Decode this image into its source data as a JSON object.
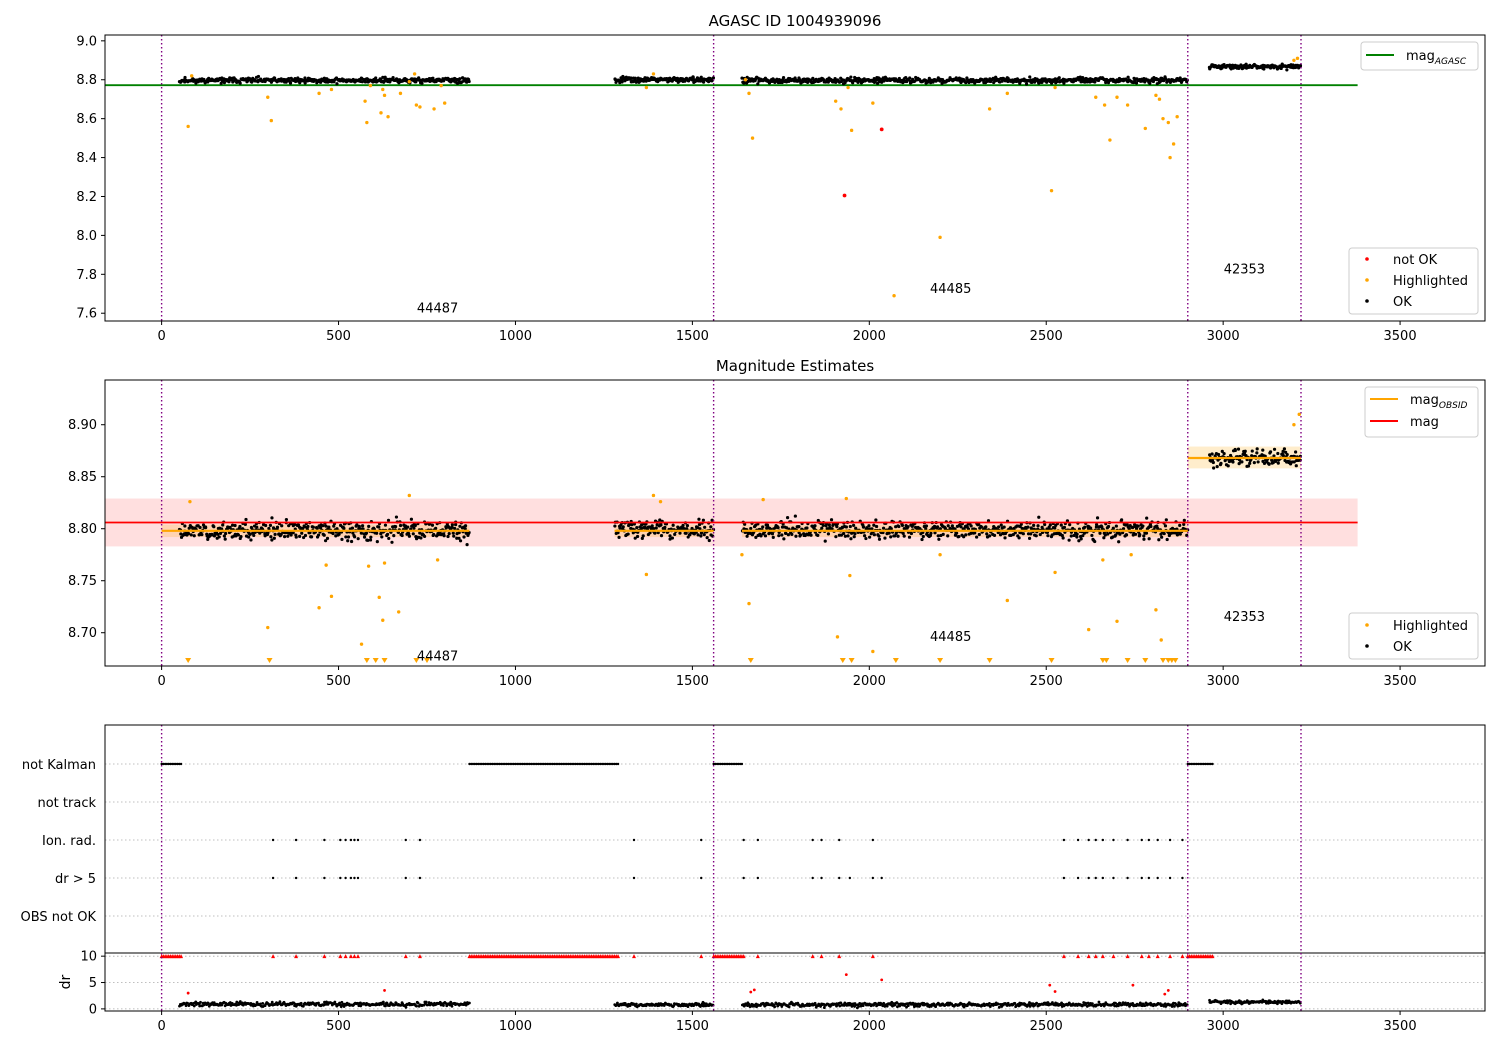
{
  "chart_data": [
    {
      "type": "scatter",
      "title": "AGASC ID 1004939096",
      "xlim": [
        -160,
        3740
      ],
      "ylim": [
        7.56,
        9.03
      ],
      "x_ticks": [
        0,
        500,
        1000,
        1500,
        2000,
        2500,
        3000,
        3500
      ],
      "y_ticks": [
        {
          "v": 9.0,
          "label": "9.0"
        },
        {
          "v": 8.8,
          "label": "8.8"
        },
        {
          "v": 8.6,
          "label": "8.6"
        },
        {
          "v": 8.4,
          "label": "8.4"
        },
        {
          "v": 8.2,
          "label": "8.2"
        },
        {
          "v": 8.0,
          "label": "8.0"
        },
        {
          "v": 7.8,
          "label": "7.8"
        },
        {
          "v": 7.6,
          "label": "7.6"
        }
      ],
      "obs_boundaries": [
        0,
        1560,
        2900,
        3220
      ],
      "reference_line": {
        "label": "mag",
        "sub": "AGASC",
        "value": 8.772,
        "x_range": [
          -160,
          3380
        ],
        "color": "#008000"
      },
      "annotations": [
        {
          "text": "44487",
          "x": 780,
          "y": 7.63
        },
        {
          "text": "44485",
          "x": 2230,
          "y": 7.73
        },
        {
          "text": "42353",
          "x": 3060,
          "y": 7.83
        }
      ],
      "series": [
        {
          "name": "not OK",
          "color": "#ff0000",
          "points": [
            [
              1930,
              8.205
            ],
            [
              2035,
              8.545
            ]
          ]
        },
        {
          "name": "Highlighted",
          "color": "#ffa500",
          "points": [
            [
              75,
              8.56
            ],
            [
              85,
              8.82
            ],
            [
              300,
              8.71
            ],
            [
              310,
              8.59
            ],
            [
              445,
              8.73
            ],
            [
              480,
              8.75
            ],
            [
              575,
              8.69
            ],
            [
              580,
              8.58
            ],
            [
              590,
              8.77
            ],
            [
              620,
              8.63
            ],
            [
              625,
              8.75
            ],
            [
              630,
              8.72
            ],
            [
              640,
              8.61
            ],
            [
              675,
              8.73
            ],
            [
              700,
              8.79
            ],
            [
              715,
              8.83
            ],
            [
              720,
              8.67
            ],
            [
              730,
              8.66
            ],
            [
              770,
              8.65
            ],
            [
              790,
              8.77
            ],
            [
              800,
              8.68
            ],
            [
              1370,
              8.76
            ],
            [
              1390,
              8.83
            ],
            [
              1650,
              8.8
            ],
            [
              1660,
              8.73
            ],
            [
              1670,
              8.5
            ],
            [
              1905,
              8.69
            ],
            [
              1920,
              8.65
            ],
            [
              1940,
              8.76
            ],
            [
              1950,
              8.54
            ],
            [
              2010,
              8.68
            ],
            [
              2070,
              7.69
            ],
            [
              2200,
              7.99
            ],
            [
              2340,
              8.65
            ],
            [
              2390,
              8.73
            ],
            [
              2515,
              8.23
            ],
            [
              2525,
              8.76
            ],
            [
              2640,
              8.71
            ],
            [
              2665,
              8.67
            ],
            [
              2680,
              8.49
            ],
            [
              2700,
              8.71
            ],
            [
              2730,
              8.67
            ],
            [
              2780,
              8.55
            ],
            [
              2810,
              8.72
            ],
            [
              2820,
              8.7
            ],
            [
              2830,
              8.6
            ],
            [
              2845,
              8.58
            ],
            [
              2850,
              8.4
            ],
            [
              2860,
              8.47
            ],
            [
              2870,
              8.61
            ],
            [
              3200,
              8.9
            ],
            [
              3210,
              8.91
            ]
          ]
        },
        {
          "name": "OK",
          "color": "#000000",
          "segments": [
            {
              "x": [
                50,
                870
              ],
              "mean": 8.797,
              "spread": 0.012,
              "n": 420
            },
            {
              "x": [
                1280,
                1560
              ],
              "mean": 8.8,
              "spread": 0.012,
              "n": 150
            },
            {
              "x": [
                1640,
                2900
              ],
              "mean": 8.797,
              "spread": 0.012,
              "n": 640
            },
            {
              "x": [
                2960,
                3220
              ],
              "mean": 8.868,
              "spread": 0.01,
              "n": 140
            }
          ]
        }
      ],
      "legend_top": [
        {
          "label": "mag",
          "sub": "AGASC",
          "color": "#008000",
          "kind": "line"
        }
      ],
      "legend_bottom": [
        {
          "label": "not OK",
          "color": "#ff0000",
          "kind": "dot"
        },
        {
          "label": "Highlighted",
          "color": "#ffa500",
          "kind": "dot"
        },
        {
          "label": "OK",
          "color": "#000000",
          "kind": "dot"
        }
      ]
    },
    {
      "type": "scatter",
      "title": "Magnitude Estimates",
      "xlim": [
        -160,
        3740
      ],
      "ylim": [
        8.668,
        8.943
      ],
      "x_ticks": [
        0,
        500,
        1000,
        1500,
        2000,
        2500,
        3000,
        3500
      ],
      "y_ticks": [
        {
          "v": 8.9,
          "label": "8.90"
        },
        {
          "v": 8.85,
          "label": "8.85"
        },
        {
          "v": 8.8,
          "label": "8.80"
        },
        {
          "v": 8.75,
          "label": "8.75"
        },
        {
          "v": 8.7,
          "label": "8.70"
        }
      ],
      "obs_boundaries": [
        0,
        1560,
        2900,
        3220
      ],
      "mag_band": {
        "label": "mag",
        "value": 8.806,
        "low": 8.783,
        "high": 8.829,
        "x_range": [
          -160,
          3380
        ],
        "color": "#ff0000"
      },
      "obsid_mags": [
        {
          "x_range": [
            0,
            870
          ],
          "value": 8.798,
          "low": 8.792,
          "high": 8.804
        },
        {
          "x_range": [
            1280,
            1560
          ],
          "value": 8.798,
          "low": 8.792,
          "high": 8.804
        },
        {
          "x_range": [
            1640,
            2900
          ],
          "value": 8.798,
          "low": 8.792,
          "high": 8.804
        },
        {
          "x_range": [
            2900,
            3220
          ],
          "value": 8.868,
          "low": 8.858,
          "high": 8.879
        }
      ],
      "annotations": [
        {
          "text": "44487",
          "x": 780,
          "y": 8.678
        },
        {
          "text": "44485",
          "x": 2230,
          "y": 8.697
        },
        {
          "text": "42353",
          "x": 3060,
          "y": 8.716
        }
      ],
      "series": [
        {
          "name": "Highlighted",
          "color": "#ffa500",
          "points": [
            [
              80,
              8.826
            ],
            [
              300,
              8.705
            ],
            [
              445,
              8.724
            ],
            [
              465,
              8.765
            ],
            [
              480,
              8.735
            ],
            [
              565,
              8.689
            ],
            [
              585,
              8.764
            ],
            [
              615,
              8.734
            ],
            [
              625,
              8.712
            ],
            [
              630,
              8.767
            ],
            [
              670,
              8.72
            ],
            [
              700,
              8.832
            ],
            [
              780,
              8.77
            ],
            [
              1370,
              8.756
            ],
            [
              1390,
              8.832
            ],
            [
              1410,
              8.826
            ],
            [
              1640,
              8.775
            ],
            [
              1660,
              8.728
            ],
            [
              1700,
              8.828
            ],
            [
              1910,
              8.696
            ],
            [
              1935,
              8.829
            ],
            [
              1945,
              8.755
            ],
            [
              2010,
              8.682
            ],
            [
              2200,
              8.775
            ],
            [
              2390,
              8.731
            ],
            [
              2525,
              8.758
            ],
            [
              2620,
              8.703
            ],
            [
              2660,
              8.77
            ],
            [
              2700,
              8.711
            ],
            [
              2740,
              8.775
            ],
            [
              2810,
              8.722
            ],
            [
              2825,
              8.693
            ],
            [
              3200,
              8.9
            ],
            [
              3215,
              8.91
            ]
          ]
        },
        {
          "name": "OK",
          "color": "#000000",
          "segments": [
            {
              "x": [
                50,
                870
              ],
              "mean": 8.798,
              "spread": 0.008,
              "n": 420
            },
            {
              "x": [
                1280,
                1560
              ],
              "mean": 8.8,
              "spread": 0.008,
              "n": 150
            },
            {
              "x": [
                1640,
                2900
              ],
              "mean": 8.799,
              "spread": 0.008,
              "n": 640
            },
            {
              "x": [
                2960,
                3220
              ],
              "mean": 8.868,
              "spread": 0.007,
              "n": 140
            }
          ]
        }
      ],
      "offscale_low": {
        "color": "#ffa500",
        "x": [
          75,
          305,
          580,
          605,
          630,
          720,
          750,
          1665,
          1925,
          1950,
          2075,
          2200,
          2340,
          2515,
          2660,
          2670,
          2730,
          2780,
          2830,
          2845,
          2855,
          2865
        ]
      },
      "legend_top": [
        {
          "label": "mag",
          "sub": "OBSID",
          "color": "#ffa500",
          "kind": "line"
        },
        {
          "label": "mag",
          "sub": "",
          "color": "#ff0000",
          "kind": "line"
        }
      ],
      "legend_bottom": [
        {
          "label": "Highlighted",
          "color": "#ffa500",
          "kind": "dot"
        },
        {
          "label": "OK",
          "color": "#000000",
          "kind": "dot"
        }
      ]
    },
    {
      "type": "scatter",
      "xlim": [
        -160,
        3740
      ],
      "obs_boundaries": [
        0,
        1560,
        2900,
        3220
      ],
      "flag_rows": [
        "not Kalman",
        "not track",
        "Ion. rad.",
        "dr > 5",
        "OBS not OK"
      ],
      "flags": {
        "not Kalman": [
          [
            0,
            55
          ],
          [
            870,
            1290
          ],
          [
            1560,
            1640
          ],
          [
            2900,
            2970
          ]
        ],
        "Ion. rad.": [
          315,
          380,
          460,
          505,
          520,
          535,
          545,
          555,
          690,
          730,
          1335,
          1525,
          1645,
          1685,
          1840,
          1865,
          1915,
          2010,
          2550,
          2590,
          2620,
          2640,
          2660,
          2690,
          2730,
          2770,
          2790,
          2815,
          2850,
          2885
        ],
        "dr > 5": [
          315,
          380,
          460,
          505,
          520,
          535,
          545,
          555,
          690,
          730,
          1335,
          1525,
          1645,
          1685,
          1840,
          1865,
          1915,
          1945,
          2010,
          2035,
          2550,
          2590,
          2620,
          2640,
          2660,
          2690,
          2730,
          2770,
          2790,
          2815,
          2850,
          2885
        ]
      },
      "dr_panel": {
        "ylabel": "dr",
        "y_ticks": [
          {
            "v": 10,
            "label": "10"
          },
          {
            "v": 5,
            "label": "5"
          },
          {
            "v": 0,
            "label": "0"
          }
        ],
        "ylim": [
          -0.4,
          10.6
        ],
        "cap_markers": {
          "color": "#ff0000",
          "value": 10,
          "x": [
            [
              0,
              55
            ],
            [
              870,
              1290
            ],
            [
              1560,
              1640
            ],
            [
              2900,
              2970
            ],
            [
              315,
              315
            ],
            [
              380,
              380
            ],
            [
              460,
              460
            ],
            [
              505,
              505
            ],
            [
              520,
              520
            ],
            [
              535,
              535
            ],
            [
              545,
              545
            ],
            [
              555,
              555
            ],
            [
              690,
              690
            ],
            [
              730,
              730
            ],
            [
              1335,
              1335
            ],
            [
              1525,
              1525
            ],
            [
              1645,
              1645
            ],
            [
              1685,
              1685
            ],
            [
              1840,
              1840
            ],
            [
              1865,
              1865
            ],
            [
              1915,
              1915
            ],
            [
              2010,
              2010
            ],
            [
              2550,
              2550
            ],
            [
              2590,
              2590
            ],
            [
              2620,
              2620
            ],
            [
              2640,
              2640
            ],
            [
              2660,
              2660
            ],
            [
              2690,
              2690
            ],
            [
              2730,
              2730
            ],
            [
              2770,
              2770
            ],
            [
              2790,
              2790
            ],
            [
              2815,
              2815
            ],
            [
              2850,
              2850
            ],
            [
              2885,
              2885
            ]
          ]
        },
        "red_points": [
          [
            75,
            3.0
          ],
          [
            630,
            3.5
          ],
          [
            1665,
            3.2
          ],
          [
            1675,
            3.6
          ],
          [
            1935,
            6.5
          ],
          [
            2035,
            5.5
          ],
          [
            2510,
            4.5
          ],
          [
            2525,
            3.3
          ],
          [
            2745,
            4.5
          ],
          [
            2835,
            2.8
          ],
          [
            2845,
            3.5
          ]
        ],
        "ok_segments": [
          {
            "x": [
              50,
              870
            ],
            "mean": 0.9,
            "spread": 0.35,
            "n": 360
          },
          {
            "x": [
              1280,
              1560
            ],
            "mean": 0.8,
            "spread": 0.3,
            "n": 130
          },
          {
            "x": [
              1640,
              2900
            ],
            "mean": 0.8,
            "spread": 0.35,
            "n": 560
          },
          {
            "x": [
              2960,
              3220
            ],
            "mean": 1.3,
            "spread": 0.25,
            "n": 120
          }
        ]
      },
      "x_ticks": [
        0,
        500,
        1000,
        1500,
        2000,
        2500,
        3000,
        3500
      ]
    }
  ]
}
